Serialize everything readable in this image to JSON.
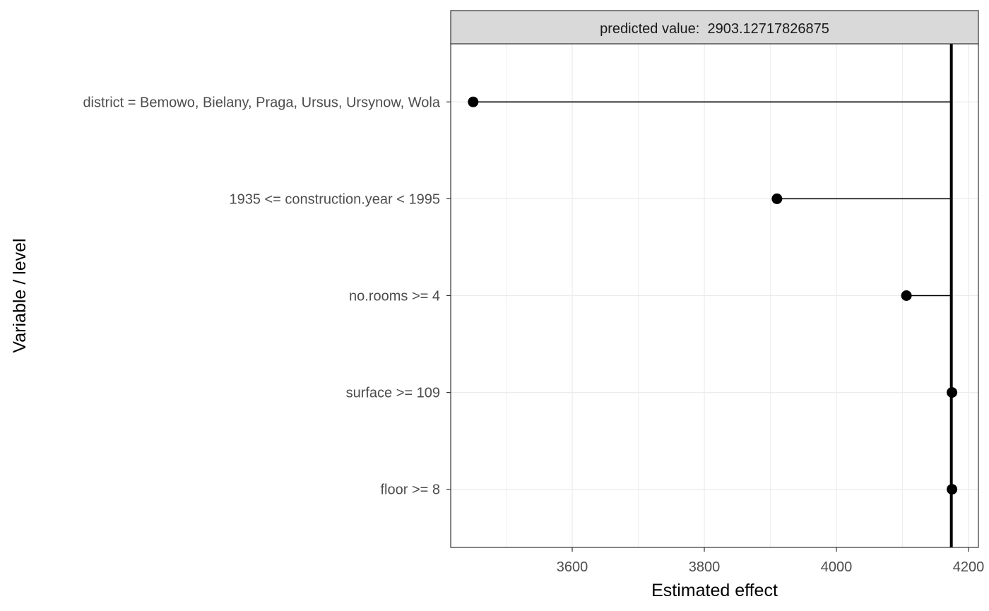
{
  "chart_data": {
    "type": "dot",
    "facet_label": "predicted value:  2903.12717826875",
    "xlabel": "Estimated effect",
    "ylabel": "Variable / level",
    "xlim": [
      3416,
      4215
    ],
    "x_ticks": [
      3600,
      3800,
      4000,
      4200
    ],
    "baseline": 4174,
    "categories": [
      "district = Bemowo, Bielany, Praga, Ursus, Ursynow, Wola",
      "1935 <= construction.year <  1995",
      "no.rooms >= 4",
      "surface >= 109",
      "floor >= 8"
    ],
    "values": [
      3450,
      3910,
      4106,
      4175,
      4175
    ],
    "grid": true,
    "colors": {
      "point": "#000000",
      "segment": "#000000",
      "baseline": "#000000",
      "grid": "#ebebeb",
      "strip_fill": "#d9d9d9",
      "tick_text": "#4d4d4d"
    }
  }
}
